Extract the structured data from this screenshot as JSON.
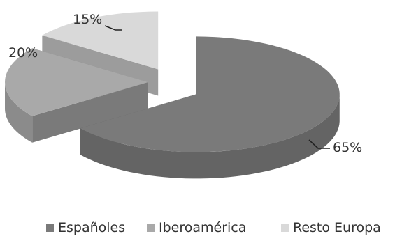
{
  "chart_data": {
    "type": "pie",
    "style": "3d-exploded",
    "categories": [
      "Españoles",
      "Iberoamérica",
      "Resto Europa"
    ],
    "values": [
      65,
      20,
      15
    ],
    "data_labels": [
      "65%",
      "20%",
      "15%"
    ],
    "colors": [
      "#7a7a7a",
      "#a9a9a9",
      "#d9d9d9"
    ],
    "legend_position": "bottom",
    "title": ""
  }
}
